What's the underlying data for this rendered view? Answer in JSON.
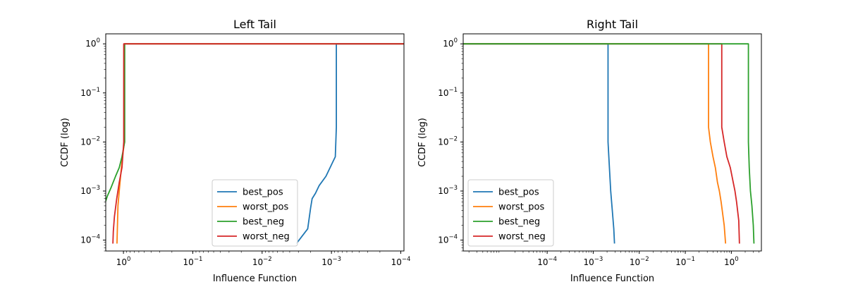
{
  "chart_data": [
    {
      "type": "line",
      "title": "Left Tail",
      "xlabel": "Influence Function",
      "ylabel": "CCDF (log)",
      "xscale": "log",
      "yscale": "log",
      "x_inverted": true,
      "xlim": [
        1.8,
        9e-05
      ],
      "ylim": [
        6e-05,
        1.6
      ],
      "xticks": [
        {
          "value": 1,
          "base": "10",
          "exp": "0"
        },
        {
          "value": 0.1,
          "base": "10",
          "exp": "−1"
        },
        {
          "value": 0.01,
          "base": "10",
          "exp": "−2"
        },
        {
          "value": 0.001,
          "base": "10",
          "exp": "−3"
        },
        {
          "value": 0.0001,
          "base": "10",
          "exp": "−4"
        }
      ],
      "yticks": [
        {
          "value": 1,
          "base": "10",
          "exp": "0"
        },
        {
          "value": 0.1,
          "base": "10",
          "exp": "−1"
        },
        {
          "value": 0.01,
          "base": "10",
          "exp": "−2"
        },
        {
          "value": 0.001,
          "base": "10",
          "exp": "−3"
        },
        {
          "value": 0.0001,
          "base": "10",
          "exp": "−4"
        }
      ],
      "legend_position": "lower-center",
      "series": [
        {
          "name": "best_pos",
          "color": "#1f77b4",
          "points": [
            [
              1e-05,
              1
            ],
            [
              0.00085,
              1
            ],
            [
              0.00085,
              0.02
            ],
            [
              0.00088,
              0.005
            ],
            [
              0.00095,
              0.004
            ],
            [
              0.0012,
              0.002
            ],
            [
              0.0015,
              0.0013
            ],
            [
              0.0017,
              0.0009
            ],
            [
              0.0019,
              0.0007
            ],
            [
              0.002,
              0.00045
            ],
            [
              0.0022,
              0.00017
            ],
            [
              0.0032,
              8.5e-05
            ]
          ]
        },
        {
          "name": "worst_pos",
          "color": "#ff7f0e",
          "points": [
            [
              1e-05,
              1
            ],
            [
              0.97,
              1
            ],
            [
              0.97,
              0.01
            ],
            [
              1.05,
              0.004
            ],
            [
              1.1,
              0.002
            ],
            [
              1.15,
              0.001
            ],
            [
              1.2,
              0.0005
            ],
            [
              1.22,
              0.0002
            ],
            [
              1.24,
              8.5e-05
            ]
          ]
        },
        {
          "name": "best_neg",
          "color": "#2ca02c",
          "points": [
            [
              1e-05,
              1
            ],
            [
              0.96,
              1
            ],
            [
              0.96,
              0.01
            ],
            [
              1.05,
              0.005
            ],
            [
              1.15,
              0.003
            ],
            [
              1.3,
              0.002
            ],
            [
              1.5,
              0.0012
            ],
            [
              1.7,
              0.0008
            ],
            [
              1.9,
              0.0005
            ],
            [
              2.05,
              0.00035
            ],
            [
              2.2,
              0.00017
            ],
            [
              2.4,
              8.5e-05
            ]
          ]
        },
        {
          "name": "worst_neg",
          "color": "#d62728",
          "points": [
            [
              1e-05,
              1
            ],
            [
              0.99,
              1
            ],
            [
              0.99,
              0.01
            ],
            [
              1.05,
              0.003
            ],
            [
              1.15,
              0.0015
            ],
            [
              1.25,
              0.0007
            ],
            [
              1.35,
              0.0003
            ],
            [
              1.4,
              0.00015
            ],
            [
              1.42,
              8.5e-05
            ]
          ]
        }
      ]
    },
    {
      "type": "line",
      "title": "Right Tail",
      "xlabel": "Influence Function",
      "ylabel": "CCDF (log)",
      "xscale": "log",
      "yscale": "log",
      "x_inverted": false,
      "xlim": [
        1.5e-06,
        4.5
      ],
      "ylim": [
        6e-05,
        1.6
      ],
      "xticks": [
        {
          "value": 0.0001,
          "base": "10",
          "exp": "−4"
        },
        {
          "value": 0.001,
          "base": "10",
          "exp": "−3"
        },
        {
          "value": 0.01,
          "base": "10",
          "exp": "−2"
        },
        {
          "value": 0.1,
          "base": "10",
          "exp": "−1"
        },
        {
          "value": 1,
          "base": "10",
          "exp": "0"
        }
      ],
      "yticks": [
        {
          "value": 1,
          "base": "10",
          "exp": "0"
        },
        {
          "value": 0.1,
          "base": "10",
          "exp": "−1"
        },
        {
          "value": 0.01,
          "base": "10",
          "exp": "−2"
        },
        {
          "value": 0.001,
          "base": "10",
          "exp": "−3"
        },
        {
          "value": 0.0001,
          "base": "10",
          "exp": "−4"
        }
      ],
      "legend_position": "lower-left",
      "series": [
        {
          "name": "best_pos",
          "color": "#1f77b4",
          "points": [
            [
              1e-06,
              1
            ],
            [
              0.0021,
              1
            ],
            [
              0.0021,
              0.01
            ],
            [
              0.00225,
              0.003
            ],
            [
              0.0024,
              0.001
            ],
            [
              0.0026,
              0.0004
            ],
            [
              0.0028,
              0.00017
            ],
            [
              0.0029,
              8.5e-05
            ]
          ]
        },
        {
          "name": "worst_pos",
          "color": "#ff7f0e",
          "points": [
            [
              1e-06,
              1
            ],
            [
              0.32,
              1
            ],
            [
              0.32,
              0.02
            ],
            [
              0.35,
              0.01
            ],
            [
              0.4,
              0.005
            ],
            [
              0.45,
              0.003
            ],
            [
              0.5,
              0.0015
            ],
            [
              0.55,
              0.001
            ],
            [
              0.6,
              0.0006
            ],
            [
              0.7,
              0.0002
            ],
            [
              0.75,
              8.5e-05
            ]
          ]
        },
        {
          "name": "worst_neg",
          "color": "#d62728",
          "points": [
            [
              1e-06,
              1
            ],
            [
              0.62,
              1
            ],
            [
              0.62,
              0.02
            ],
            [
              0.7,
              0.01
            ],
            [
              0.8,
              0.005
            ],
            [
              0.95,
              0.003
            ],
            [
              1.1,
              0.0015
            ],
            [
              1.2,
              0.001
            ],
            [
              1.3,
              0.0006
            ],
            [
              1.45,
              0.00025
            ],
            [
              1.5,
              8.5e-05
            ]
          ]
        },
        {
          "name": "best_neg",
          "color": "#2ca02c",
          "points": [
            [
              1e-06,
              1
            ],
            [
              2.35,
              1
            ],
            [
              2.35,
              0.01
            ],
            [
              2.45,
              0.003
            ],
            [
              2.6,
              0.001
            ],
            [
              2.8,
              0.0005
            ],
            [
              3.0,
              0.0002
            ],
            [
              3.1,
              8.5e-05
            ]
          ]
        }
      ],
      "legend_order": [
        "best_pos",
        "worst_pos",
        "best_neg",
        "worst_neg"
      ]
    }
  ]
}
